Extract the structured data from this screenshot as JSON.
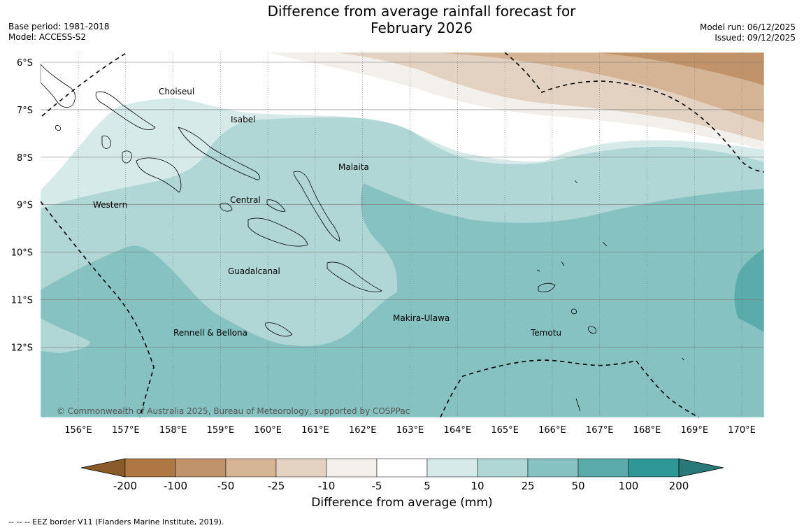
{
  "header": {
    "title_line1": "Difference from average rainfall forecast for",
    "title_line2": "February 2026",
    "base_period": "Base period: 1981-2018",
    "model": "Model: ACCESS-S2",
    "model_run": "Model run: 06/12/2025",
    "issued": "Issued: 09/12/2025"
  },
  "map": {
    "lat_labels": [
      "6°S",
      "7°S",
      "8°S",
      "9°S",
      "10°S",
      "11°S",
      "12°S"
    ],
    "lon_labels": [
      "156°E",
      "157°E",
      "158°E",
      "159°E",
      "160°E",
      "161°E",
      "162°E",
      "163°E",
      "164°E",
      "165°E",
      "166°E",
      "167°E",
      "168°E",
      "169°E",
      "170°E"
    ],
    "provinces": [
      "Choiseul",
      "Isabel",
      "Malaita",
      "Western",
      "Central",
      "Guadalcanal",
      "Makira-Ulawa",
      "Rennell & Bellona",
      "Temotu"
    ],
    "copyright": "© Commonwealth of Australia 2025, Bureau of Meteorology, supported by COSPPac"
  },
  "colorbar": {
    "ticks": [
      "-200",
      "-100",
      "-50",
      "-25",
      "-10",
      "-5",
      "5",
      "10",
      "25",
      "50",
      "100",
      "200"
    ],
    "colors": {
      "lt_-200": "#8a5a2b",
      "-200_-100": "#ad7844",
      "-100_-50": "#c1936b",
      "-50_-25": "#d5b496",
      "-25_-10": "#e3d2c2",
      "-10_-5": "#f3efea",
      "-5_5": "#ffffff",
      "5_10": "#d6eaea",
      "10_25": "#b0d6d6",
      "25_50": "#86c2c1",
      "50_100": "#5aabaa",
      "100_200": "#2f9795",
      "gt_200": "#287a78"
    },
    "title": "Difference from average (mm)"
  },
  "footnote": "--  --  -- EEZ border V11 (Flanders Marine Institute, 2019)."
}
